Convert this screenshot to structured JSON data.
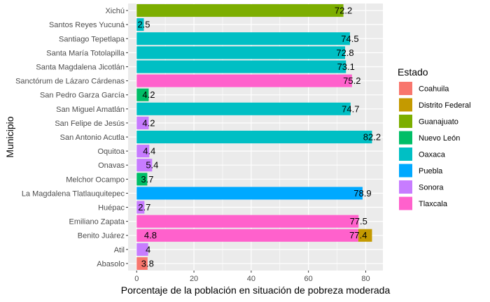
{
  "chart_data": {
    "type": "bar",
    "orientation": "horizontal",
    "xlabel": "Porcentaje de la población en situación de pobreza moderada",
    "ylabel": "Municipio",
    "xlim": [
      -3,
      86
    ],
    "xticks": [
      0,
      20,
      40,
      60,
      80
    ],
    "grid": true,
    "legend_position": "right",
    "legend_title": "Estado",
    "legend": [
      {
        "name": "Coahuila",
        "color": "#F8766D"
      },
      {
        "name": "Distrito Federal",
        "color": "#C49A00"
      },
      {
        "name": "Guanajuato",
        "color": "#7CAE00"
      },
      {
        "name": "Nuevo León",
        "color": "#00BE67"
      },
      {
        "name": "Oaxaca",
        "color": "#00BFC4"
      },
      {
        "name": "Puebla",
        "color": "#00A9FF"
      },
      {
        "name": "Sonora",
        "color": "#C77CFF"
      },
      {
        "name": "Tlaxcala",
        "color": "#FF61CC"
      }
    ],
    "categories": [
      "Abasolo",
      "Atil",
      "Benito Juárez",
      "Emiliano Zapata",
      "Huépac",
      "La Magdalena Tlatlauquitepec",
      "Melchor Ocampo",
      "Onavas",
      "Oquitoa",
      "San Antonio Acutla",
      "San Felipe de Jesús",
      "San Miguel Amatlán",
      "San Pedro Garza García",
      "Sanctórum de Lázaro Cárdenas",
      "Santa Magdalena Jicotlán",
      "Santa María Totolapilla",
      "Santiago Tepetlapa",
      "Santos Reyes Yucuná",
      "Xichú"
    ],
    "bars": [
      {
        "municipio": "Abasolo",
        "estado": "Coahuila",
        "value": 3.8
      },
      {
        "municipio": "Atil",
        "estado": "Sonora",
        "value": 4
      },
      {
        "municipio": "Benito Juárez",
        "estado": "Distrito Federal",
        "value": 4.8
      },
      {
        "municipio": "Benito Juárez",
        "estado": "Tlaxcala",
        "value": 77.4
      },
      {
        "municipio": "Emiliano Zapata",
        "estado": "Tlaxcala",
        "value": 77.5
      },
      {
        "municipio": "Huépac",
        "estado": "Sonora",
        "value": 2.7
      },
      {
        "municipio": "La Magdalena Tlatlauquitepec",
        "estado": "Puebla",
        "value": 78.9
      },
      {
        "municipio": "Melchor Ocampo",
        "estado": "Nuevo León",
        "value": 3.7
      },
      {
        "municipio": "Onavas",
        "estado": "Sonora",
        "value": 5.4
      },
      {
        "municipio": "Oquitoa",
        "estado": "Sonora",
        "value": 4.4
      },
      {
        "municipio": "San Antonio Acutla",
        "estado": "Oaxaca",
        "value": 82.2
      },
      {
        "municipio": "San Felipe de Jesús",
        "estado": "Sonora",
        "value": 4.2
      },
      {
        "municipio": "San Miguel Amatlán",
        "estado": "Oaxaca",
        "value": 74.7
      },
      {
        "municipio": "San Pedro Garza García",
        "estado": "Nuevo León",
        "value": 4.2
      },
      {
        "municipio": "Sanctórum de Lázaro Cárdenas",
        "estado": "Tlaxcala",
        "value": 75.2
      },
      {
        "municipio": "Santa Magdalena Jicotlán",
        "estado": "Oaxaca",
        "value": 73.1
      },
      {
        "municipio": "Santa María Totolapilla",
        "estado": "Oaxaca",
        "value": 72.8
      },
      {
        "municipio": "Santiago Tepetlapa",
        "estado": "Oaxaca",
        "value": 74.5
      },
      {
        "municipio": "Santos Reyes Yucuná",
        "estado": "Oaxaca",
        "value": 2.5
      },
      {
        "municipio": "Xichú",
        "estado": "Guanajuato",
        "value": 72.2
      }
    ],
    "data_labels": [
      {
        "municipio": "Abasolo",
        "text": "3.8",
        "value": 3.8
      },
      {
        "municipio": "Atil",
        "text": "4",
        "value": 4
      },
      {
        "municipio": "Benito Juárez",
        "text": "4.8",
        "value": 4.8
      },
      {
        "municipio": "Benito Juárez",
        "text": "77.4",
        "value": 77.4
      },
      {
        "municipio": "Emiliano Zapata",
        "text": "77.5",
        "value": 77.5
      },
      {
        "municipio": "Huépac",
        "text": "2.7",
        "value": 2.7
      },
      {
        "municipio": "La Magdalena Tlatlauquitepec",
        "text": "78.9",
        "value": 78.9
      },
      {
        "municipio": "Melchor Ocampo",
        "text": "3.7",
        "value": 3.7
      },
      {
        "municipio": "Onavas",
        "text": "5.4",
        "value": 5.4
      },
      {
        "municipio": "Oquitoa",
        "text": "4.4",
        "value": 4.4
      },
      {
        "municipio": "San Antonio Acutla",
        "text": "82.2",
        "value": 82.2
      },
      {
        "municipio": "San Felipe de Jesús",
        "text": "4.2",
        "value": 4.2
      },
      {
        "municipio": "San Miguel Amatlán",
        "text": "74.7",
        "value": 74.7
      },
      {
        "municipio": "San Pedro Garza García",
        "text": "4.2",
        "value": 4.2
      },
      {
        "municipio": "Sanctórum de Lázaro Cárdenas",
        "text": "75.2",
        "value": 75.2
      },
      {
        "municipio": "Santa Magdalena Jicotlán",
        "text": "73.1",
        "value": 73.1
      },
      {
        "municipio": "Santa María Totolapilla",
        "text": "72.8",
        "value": 72.8
      },
      {
        "municipio": "Santiago Tepetlapa",
        "text": "74.5",
        "value": 74.5
      },
      {
        "municipio": "Santos Reyes Yucuná",
        "text": "2.5",
        "value": 2.5
      },
      {
        "municipio": "Xichú",
        "text": "72.2",
        "value": 72.2
      }
    ]
  }
}
